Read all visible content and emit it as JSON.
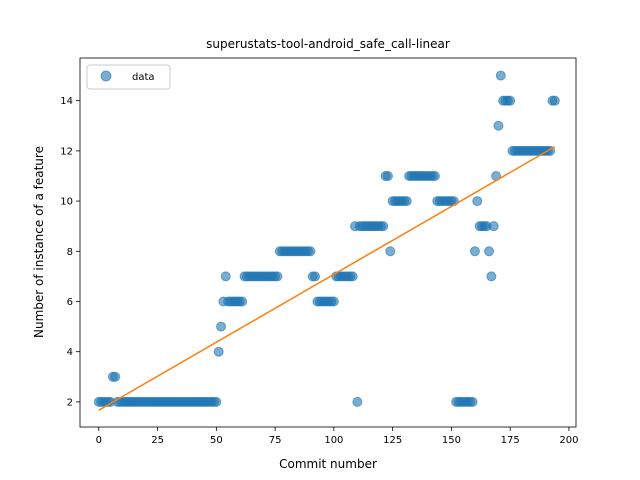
{
  "chart_data": {
    "type": "scatter",
    "title": "superustats-tool-android_safe_call-linear",
    "xlabel": "Commit number",
    "ylabel": "Number of instance of a feature",
    "xlim": [
      -8,
      203
    ],
    "ylim": [
      1.0,
      15.7
    ],
    "xticks": [
      0,
      25,
      50,
      75,
      100,
      125,
      150,
      175,
      200
    ],
    "yticks": [
      2,
      4,
      6,
      8,
      10,
      12,
      14
    ],
    "legend": {
      "position": "upper-left",
      "entries": [
        "data"
      ]
    },
    "colors": {
      "points": "#1f77b4",
      "fit": "#ff7f0e"
    },
    "series": [
      {
        "name": "data",
        "kind": "points",
        "x": [
          0,
          1,
          2,
          3,
          4,
          5,
          6,
          7,
          8,
          9,
          10,
          11,
          12,
          13,
          14,
          15,
          16,
          17,
          18,
          19,
          20,
          21,
          22,
          23,
          24,
          25,
          26,
          27,
          28,
          29,
          30,
          31,
          32,
          33,
          34,
          35,
          36,
          37,
          38,
          39,
          40,
          41,
          42,
          43,
          44,
          45,
          46,
          47,
          48,
          49,
          50,
          51,
          52,
          53,
          54,
          55,
          56,
          57,
          58,
          59,
          60,
          61,
          62,
          63,
          64,
          65,
          66,
          67,
          68,
          69,
          70,
          71,
          72,
          73,
          74,
          75,
          76,
          77,
          78,
          79,
          80,
          81,
          82,
          83,
          84,
          85,
          86,
          87,
          88,
          89,
          90,
          91,
          92,
          93,
          94,
          95,
          96,
          97,
          98,
          99,
          100,
          101,
          102,
          103,
          104,
          105,
          106,
          107,
          108,
          109,
          110,
          111,
          112,
          113,
          114,
          115,
          116,
          117,
          118,
          119,
          120,
          121,
          122,
          123,
          124,
          125,
          126,
          127,
          128,
          129,
          130,
          131,
          132,
          133,
          134,
          135,
          136,
          137,
          138,
          139,
          140,
          141,
          142,
          143,
          144,
          145,
          146,
          147,
          148,
          149,
          150,
          151,
          152,
          153,
          154,
          155,
          156,
          157,
          158,
          159,
          160,
          161,
          162,
          163,
          164,
          165,
          166,
          167,
          168,
          169,
          170,
          171,
          172,
          173,
          174,
          175,
          176,
          177,
          178,
          179,
          180,
          181,
          182,
          183,
          184,
          185,
          186,
          187,
          188,
          189,
          190,
          191,
          192,
          193,
          194
        ],
        "y": [
          2,
          2,
          2,
          2,
          2,
          2,
          3,
          3,
          2,
          2,
          2,
          2,
          2,
          2,
          2,
          2,
          2,
          2,
          2,
          2,
          2,
          2,
          2,
          2,
          2,
          2,
          2,
          2,
          2,
          2,
          2,
          2,
          2,
          2,
          2,
          2,
          2,
          2,
          2,
          2,
          2,
          2,
          2,
          2,
          2,
          2,
          2,
          2,
          2,
          2,
          2,
          4,
          5,
          6,
          7,
          6,
          6,
          6,
          6,
          6,
          6,
          6,
          7,
          7,
          7,
          7,
          7,
          7,
          7,
          7,
          7,
          7,
          7,
          7,
          7,
          7,
          7,
          8,
          8,
          8,
          8,
          8,
          8,
          8,
          8,
          8,
          8,
          8,
          8,
          8,
          8,
          7,
          7,
          6,
          6,
          6,
          6,
          6,
          6,
          6,
          6,
          7,
          7,
          7,
          7,
          7,
          7,
          7,
          7,
          9,
          2,
          9,
          9,
          9,
          9,
          9,
          9,
          9,
          9,
          9,
          9,
          9,
          11,
          11,
          8,
          10,
          10,
          10,
          10,
          10,
          10,
          10,
          11,
          11,
          11,
          11,
          11,
          11,
          11,
          11,
          11,
          11,
          11,
          11,
          10,
          10,
          10,
          10,
          10,
          10,
          10,
          10,
          2,
          2,
          2,
          2,
          2,
          2,
          2,
          2,
          8,
          10,
          9,
          9,
          9,
          9,
          8,
          7,
          9,
          11,
          13,
          15,
          14,
          14,
          14,
          14,
          12,
          12,
          12,
          12,
          12,
          12,
          12,
          12,
          12,
          12,
          12,
          12,
          12,
          12,
          12,
          12,
          12,
          14,
          14
        ]
      },
      {
        "name": "",
        "kind": "line",
        "x": [
          0,
          194
        ],
        "y": [
          1.67,
          12.17
        ]
      }
    ]
  }
}
